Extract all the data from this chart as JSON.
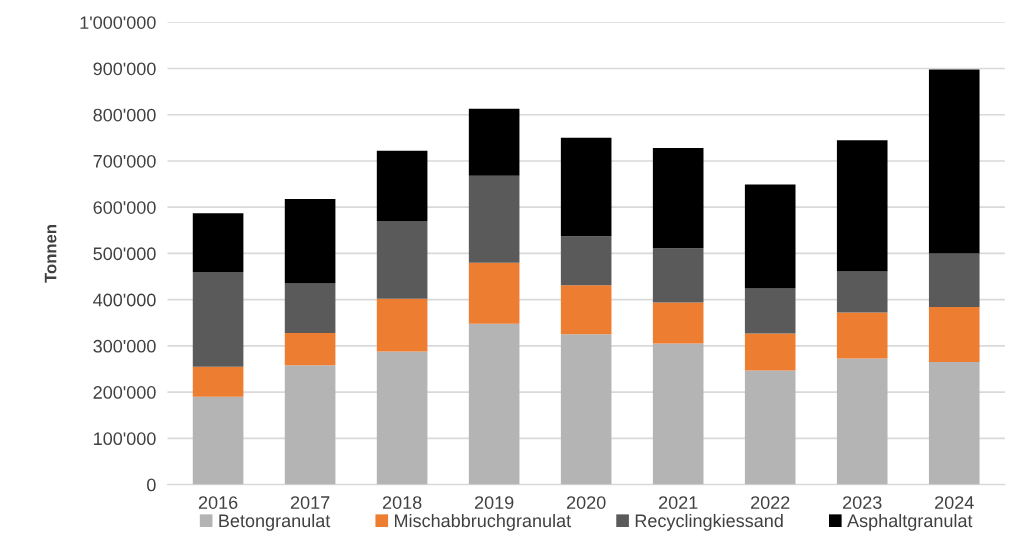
{
  "chart_data": {
    "type": "bar",
    "stacked": true,
    "ylabel": "Tonnen",
    "categories": [
      "2016",
      "2017",
      "2018",
      "2019",
      "2020",
      "2021",
      "2022",
      "2023",
      "2024"
    ],
    "series": [
      {
        "name": "Betongranulat",
        "color": "#b4b4b4",
        "values": [
          190000,
          258000,
          288000,
          348000,
          325000,
          305000,
          247000,
          273000,
          265000
        ]
      },
      {
        "name": "Mischabbruchgranulat",
        "color": "#ed7d31",
        "values": [
          65000,
          70000,
          114000,
          132000,
          106000,
          89000,
          80000,
          99000,
          119000
        ]
      },
      {
        "name": "Recyclingkiessand",
        "color": "#5a5a5a",
        "values": [
          205000,
          107000,
          168000,
          188000,
          106000,
          117000,
          97000,
          89000,
          116000
        ]
      },
      {
        "name": "Asphaltgranulat",
        "color": "#000000",
        "values": [
          127000,
          183000,
          152000,
          145000,
          213000,
          217000,
          225000,
          284000,
          398000
        ]
      }
    ],
    "ylim": [
      0,
      1000000
    ],
    "yticks": [
      {
        "value": 0,
        "label": "0"
      },
      {
        "value": 100000,
        "label": "100'000"
      },
      {
        "value": 200000,
        "label": "200'000"
      },
      {
        "value": 300000,
        "label": "300'000"
      },
      {
        "value": 400000,
        "label": "400'000"
      },
      {
        "value": 500000,
        "label": "500'000"
      },
      {
        "value": 600000,
        "label": "600'000"
      },
      {
        "value": 700000,
        "label": "700'000"
      },
      {
        "value": 800000,
        "label": "800'000"
      },
      {
        "value": 900000,
        "label": "900'000"
      },
      {
        "value": 1000000,
        "label": "1'000'000"
      }
    ],
    "grid": "y",
    "legend": "bottom"
  }
}
